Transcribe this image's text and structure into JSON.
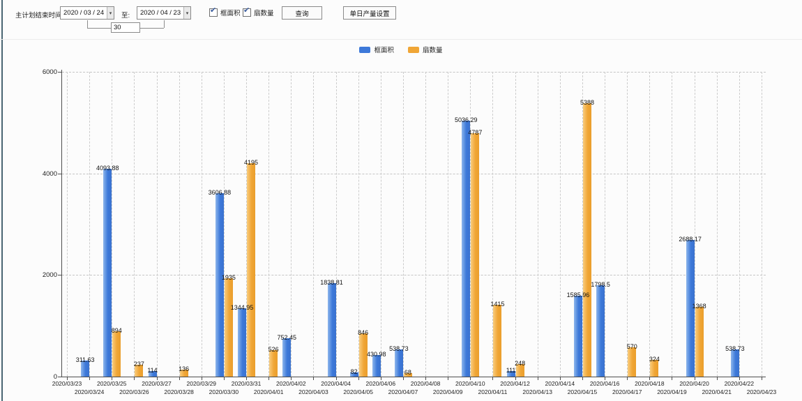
{
  "toolbar": {
    "plan_end_label": "主计划结束时间:",
    "date_from": "2020 / 03 / 24",
    "to_label": "至:",
    "date_to": "2020 / 04 / 23",
    "days_value": "30",
    "checkbox_frame_area": "框面积",
    "checkbox_fan_quantity": "扇数量",
    "query_button": "查询",
    "daily_output_button": "单日产量设置"
  },
  "chart_data": {
    "type": "bar",
    "title": "",
    "xlabel": "",
    "ylabel": "",
    "ylim": [
      0,
      6000
    ],
    "yticks": [
      0,
      2000,
      4000,
      6000
    ],
    "grid": true,
    "legend_position": "top",
    "categories": [
      "2020/03/23",
      "2020/03/24",
      "2020/03/25",
      "2020/03/26",
      "2020/03/27",
      "2020/03/28",
      "2020/03/29",
      "2020/03/30",
      "2020/03/31",
      "2020/04/01",
      "2020/04/02",
      "2020/04/03",
      "2020/04/04",
      "2020/04/05",
      "2020/04/06",
      "2020/04/07",
      "2020/04/08",
      "2020/04/09",
      "2020/04/10",
      "2020/04/11",
      "2020/04/12",
      "2020/04/13",
      "2020/04/14",
      "2020/04/15",
      "2020/04/16",
      "2020/04/17",
      "2020/04/18",
      "2020/04/19",
      "2020/04/20",
      "2020/04/21",
      "2020/04/22",
      "2020/04/23"
    ],
    "series": [
      {
        "name": "框面积",
        "color": "#3d79d9",
        "values": [
          null,
          311.63,
          4093.88,
          null,
          114,
          null,
          null,
          3606.88,
          1344.95,
          null,
          752.45,
          null,
          1838.81,
          82,
          430.98,
          538.73,
          null,
          null,
          5036.29,
          null,
          111,
          null,
          null,
          1585.96,
          1798.5,
          null,
          null,
          null,
          2688.17,
          null,
          538.73,
          null
        ]
      },
      {
        "name": "扇数量",
        "color": "#f0a636",
        "values": [
          null,
          null,
          894,
          237,
          null,
          136,
          null,
          1935,
          4195,
          526,
          null,
          null,
          null,
          846,
          null,
          68,
          null,
          null,
          4787,
          1415,
          248,
          null,
          null,
          5388,
          null,
          570,
          324,
          null,
          1368,
          null,
          null,
          null
        ]
      }
    ]
  }
}
